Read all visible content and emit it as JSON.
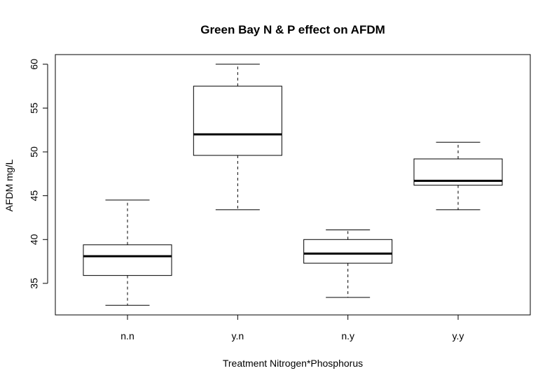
{
  "chart_data": {
    "type": "boxplot",
    "title": "Green Bay N & P effect on AFDM",
    "xlabel": "Treatment Nitrogen*Phosphorus",
    "ylabel": "AFDM mg/L",
    "categories": [
      "n.n",
      "y.n",
      "n.y",
      "y.y"
    ],
    "boxes": [
      {
        "category": "n.n",
        "whisker_low": 32.5,
        "q1": 35.9,
        "median": 38.1,
        "q3": 39.4,
        "whisker_high": 44.5
      },
      {
        "category": "y.n",
        "whisker_low": 43.4,
        "q1": 49.6,
        "median": 52.0,
        "q3": 57.5,
        "whisker_high": 60.0
      },
      {
        "category": "n.y",
        "whisker_low": 33.4,
        "q1": 37.3,
        "median": 38.4,
        "q3": 40.0,
        "whisker_high": 41.1
      },
      {
        "category": "y.y",
        "whisker_low": 43.4,
        "q1": 46.2,
        "median": 46.7,
        "q3": 49.2,
        "whisker_high": 51.1
      }
    ],
    "yticks": [
      35,
      40,
      45,
      50,
      55,
      60
    ],
    "ylim": [
      31.4,
      61.1
    ],
    "grid": false,
    "legend": "none"
  }
}
